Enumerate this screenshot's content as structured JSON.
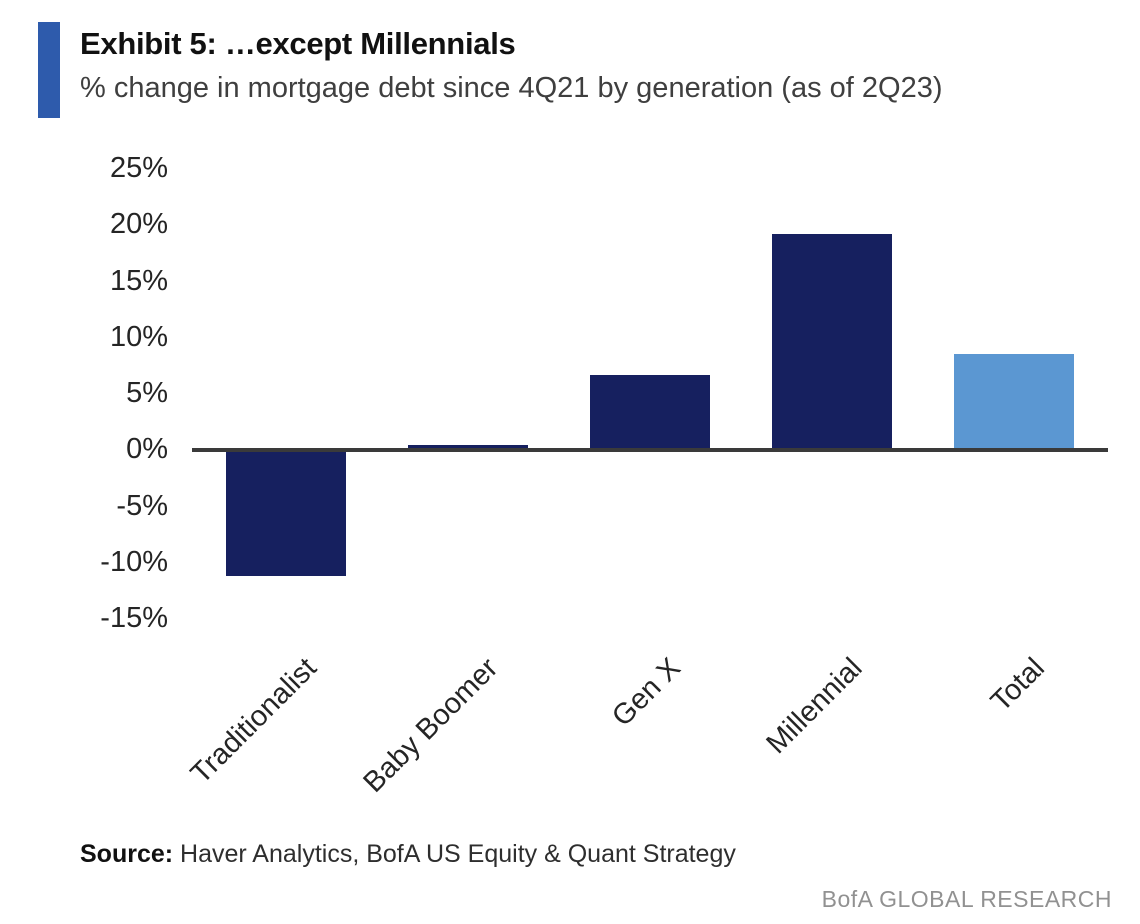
{
  "header": {
    "title": "Exhibit 5: …except Millennials",
    "subtitle": "% change in mortgage debt since 4Q21 by generation (as of 2Q23)",
    "accent_color": "#2e5bac"
  },
  "chart_data": {
    "type": "bar",
    "title": "Exhibit 5: …except Millennials",
    "subtitle": "% change in mortgage debt since 4Q21 by generation (as of 2Q23)",
    "categories": [
      "Traditionalist",
      "Baby Boomer",
      "Gen X",
      "Millennial",
      "Total"
    ],
    "values": [
      -11,
      0.5,
      6.7,
      19.2,
      8.6
    ],
    "bar_colors": [
      "#16205f",
      "#16205f",
      "#16205f",
      "#16205f",
      "#5b97d2"
    ],
    "xlabel": "",
    "ylabel": "",
    "ylim": [
      -15,
      25
    ],
    "ytick_step": 5,
    "ytick_labels": [
      "25%",
      "20%",
      "15%",
      "10%",
      "5%",
      "0%",
      "-5%",
      "-10%",
      "-15%"
    ],
    "ytick_values": [
      25,
      20,
      15,
      10,
      5,
      0,
      -5,
      -10,
      -15
    ],
    "grid": false,
    "legend": false,
    "x_label_rotation_deg": -45
  },
  "footer": {
    "source_label": "Source:",
    "source_text": "Haver Analytics, BofA US Equity & Quant Strategy",
    "brand": "BofA GLOBAL RESEARCH"
  },
  "colors": {
    "bar_dark": "#16205f",
    "bar_light": "#5b97d2",
    "axis_line": "#3a3a3a",
    "title_text": "#111111",
    "subtitle_text": "#3f3f3f",
    "brand_text": "#919191"
  }
}
